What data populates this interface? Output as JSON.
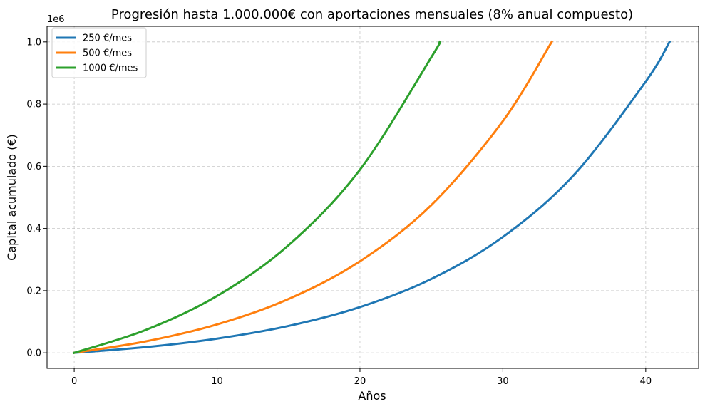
{
  "chart_data": {
    "type": "line",
    "title": "Progresión hasta 1.000.000€ con aportaciones mensuales (8% anual compuesto)",
    "xlabel": "Años",
    "ylabel": "Capital acumulado (€)",
    "y_offset_label": "1e6",
    "xlim": [
      -1.9,
      43.7
    ],
    "ylim": [
      -0.05,
      1.05
    ],
    "x_ticks": [
      0,
      10,
      20,
      30,
      40
    ],
    "x_tick_labels": [
      "0",
      "10",
      "20",
      "30",
      "40"
    ],
    "y_ticks": [
      0.0,
      0.2,
      0.4,
      0.6,
      0.8,
      1.0
    ],
    "y_tick_labels": [
      "0.0",
      "0.2",
      "0.4",
      "0.6",
      "0.8",
      "1.0"
    ],
    "y_unit_multiplier": 1000000,
    "grid": true,
    "legend_position": "top-left",
    "series": [
      {
        "name": "250 €/mes",
        "color": "#1f77b4",
        "x": [
          0,
          5,
          10,
          15,
          20,
          25,
          30,
          35,
          40,
          41.67
        ],
        "y": [
          0,
          0.01837,
          0.04574,
          0.08651,
          0.14726,
          0.23776,
          0.37259,
          0.57346,
          0.87271,
          1.0
        ]
      },
      {
        "name": "500 €/mes",
        "color": "#ff7f0e",
        "x": [
          0,
          5,
          10,
          15,
          20,
          25,
          30,
          33.42
        ],
        "y": [
          0,
          0.03674,
          0.09147,
          0.17302,
          0.29451,
          0.47551,
          0.74518,
          1.0
        ]
      },
      {
        "name": "1000 €/mes",
        "color": "#2ca02c",
        "x": [
          0,
          5,
          10,
          15,
          20,
          25,
          25.58
        ],
        "y": [
          0,
          0.07348,
          0.18295,
          0.34604,
          0.58902,
          0.95103,
          1.0
        ]
      }
    ]
  }
}
